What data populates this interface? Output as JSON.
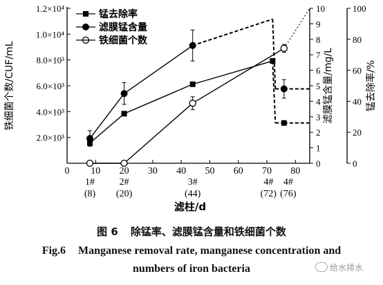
{
  "chart_data": {
    "type": "line",
    "xlabel": "滤柱/d",
    "x_ticks": [
      0,
      10,
      20,
      30,
      40,
      50,
      60,
      70,
      80
    ],
    "x_categories": [
      {
        "x": 8,
        "top": "1#",
        "bottom": "(8)"
      },
      {
        "x": 20,
        "top": "2#",
        "bottom": "(20)"
      },
      {
        "x": 44,
        "top": "3#",
        "bottom": "(44)"
      },
      {
        "x": 72,
        "top": "4#",
        "bottom": "(72)"
      },
      {
        "x": 76,
        "top": "4#",
        "bottom": "(76)"
      }
    ],
    "xlim": [
      0,
      85
    ],
    "y_left": {
      "label": "铁细菌个数/CUF/mL",
      "ylim": [
        0,
        12000
      ],
      "tick_values": [
        2000,
        4000,
        6000,
        8000,
        10000,
        12000
      ],
      "tick_labels": [
        "2.0×10³",
        "4.0×10³",
        "6.0×10³",
        "8.0×10³",
        "1.0×10⁴",
        "1.2×10⁴"
      ]
    },
    "y_mid": {
      "label": "滤膜锰含量/mg/L",
      "ylim": [
        0,
        10
      ],
      "tick_values": [
        0,
        1,
        2,
        3,
        4,
        5,
        6,
        7,
        8,
        9,
        10
      ],
      "tick_labels": [
        "0",
        "1",
        "2",
        "3",
        "4",
        "5",
        "6",
        "7",
        "8",
        "9",
        "10"
      ]
    },
    "y_right": {
      "label": "锰去除率/%",
      "ylim": [
        0,
        100
      ],
      "tick_values": [
        0,
        20,
        40,
        60,
        80,
        100
      ],
      "tick_labels": [
        "0",
        "20",
        "40",
        "60",
        "80",
        "100"
      ]
    },
    "legend_position": "top-left",
    "series": [
      {
        "name": "锰去除率",
        "axis": "y_right",
        "marker": "filled-square",
        "x": [
          8,
          20,
          44,
          72,
          76
        ],
        "y": [
          13,
          32,
          51,
          66,
          26
        ],
        "dashed_from_x": 72
      },
      {
        "name": "滤膜锰含量",
        "axis": "y_mid",
        "marker": "filled-circle",
        "x": [
          8,
          20,
          44,
          76
        ],
        "y": [
          1.6,
          4.5,
          7.6,
          4.8
        ],
        "error": [
          0.5,
          0.7,
          1.0,
          0.6
        ],
        "dashed_from_x": 44,
        "dashed_peak": {
          "x": 72,
          "y": 9.3
        }
      },
      {
        "name": "铁细菌个数",
        "axis": "y_left",
        "marker": "open-circle",
        "x": [
          8,
          20,
          44,
          76
        ],
        "y": [
          0,
          0,
          4650,
          8900
        ],
        "error": [
          0,
          0,
          500,
          300
        ],
        "dotted_from_x": 76,
        "dotted_end": {
          "x": 85,
          "y": 12000
        }
      }
    ]
  },
  "caption": {
    "cn_fig": "图 6",
    "cn_text": "除锰率、滤膜锰含量和铁细菌个数",
    "en_fig": "Fig.6",
    "en_text_line1": "Manganese removal rate, manganese concentration and",
    "en_text_line2": "numbers of iron bacteria"
  },
  "watermark": {
    "text": "给水排水"
  }
}
